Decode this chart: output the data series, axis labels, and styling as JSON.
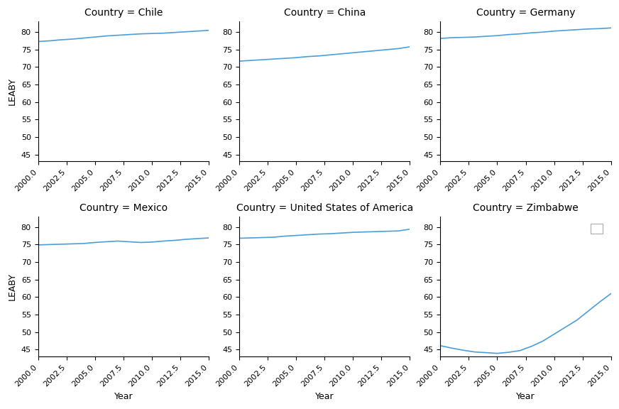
{
  "countries": [
    "Chile",
    "China",
    "Germany",
    "Mexico",
    "United States of America",
    "Zimbabwe"
  ],
  "years": [
    2000,
    2001,
    2002,
    2003,
    2004,
    2005,
    2006,
    2007,
    2008,
    2009,
    2010,
    2011,
    2012,
    2013,
    2014,
    2015
  ],
  "data": {
    "Chile": [
      77.3,
      77.5,
      77.8,
      78.0,
      78.3,
      78.6,
      78.9,
      79.1,
      79.3,
      79.5,
      79.6,
      79.7,
      79.9,
      80.1,
      80.3,
      80.5
    ],
    "China": [
      71.7,
      71.9,
      72.1,
      72.3,
      72.5,
      72.7,
      73.0,
      73.2,
      73.5,
      73.8,
      74.1,
      74.4,
      74.7,
      75.0,
      75.3,
      75.8
    ],
    "Germany": [
      78.2,
      78.4,
      78.5,
      78.6,
      78.8,
      79.0,
      79.3,
      79.5,
      79.8,
      80.0,
      80.3,
      80.5,
      80.7,
      80.9,
      81.0,
      81.2
    ],
    "Mexico": [
      74.9,
      75.0,
      75.1,
      75.2,
      75.3,
      75.6,
      75.8,
      76.0,
      75.8,
      75.6,
      75.7,
      76.0,
      76.2,
      76.5,
      76.7,
      76.9
    ],
    "United States of America": [
      76.8,
      76.9,
      77.0,
      77.1,
      77.4,
      77.6,
      77.8,
      78.0,
      78.1,
      78.3,
      78.5,
      78.6,
      78.7,
      78.8,
      78.9,
      79.4
    ],
    "Zimbabwe": [
      46.1,
      45.4,
      44.8,
      44.3,
      44.1,
      43.9,
      44.2,
      44.7,
      45.9,
      47.4,
      49.4,
      51.4,
      53.4,
      56.0,
      58.6,
      61.0
    ]
  },
  "line_color": "#4c9ed9",
  "bg_color": "#ffffff",
  "ylim": [
    43,
    83
  ],
  "yticks": [
    45,
    50,
    55,
    60,
    65,
    70,
    75,
    80
  ],
  "xticks": [
    2000.0,
    2002.5,
    2005.0,
    2007.5,
    2010.0,
    2012.5,
    2015.0
  ],
  "xticklabels": [
    "2000.0",
    "2002.5",
    "2005.0",
    "2007.5",
    "2010.0",
    "2012.5",
    "2015.0"
  ],
  "xlabel": "Year",
  "ylabel": "LEABY",
  "title_prefix": "Country = ",
  "figsize": [
    8.72,
    5.76
  ],
  "dpi": 100,
  "title_fontsize": 10,
  "label_fontsize": 9,
  "tick_fontsize": 8
}
